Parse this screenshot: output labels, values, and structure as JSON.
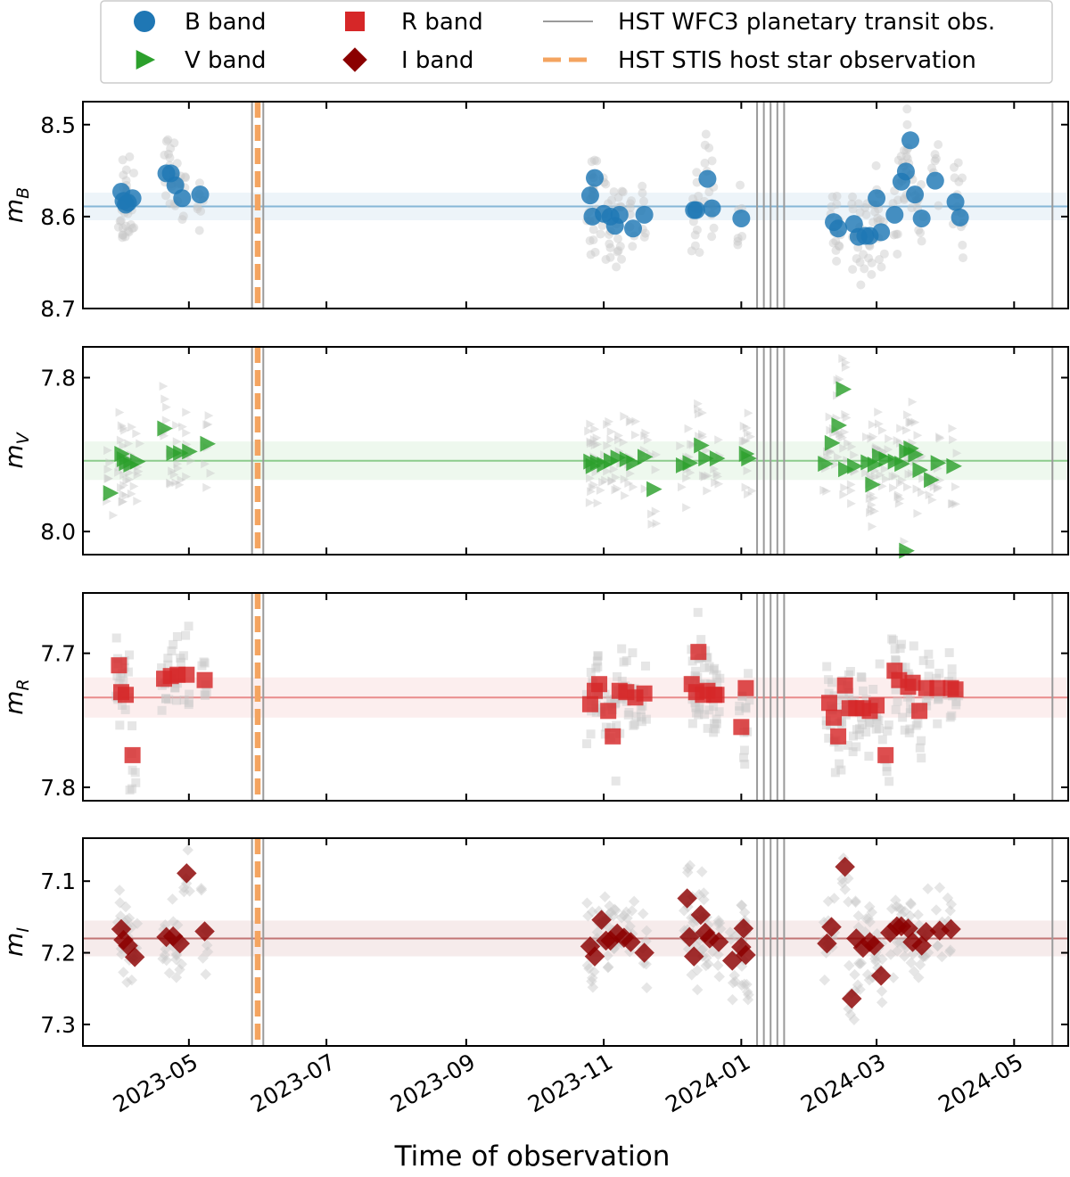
{
  "chart_data": {
    "type": "scatter",
    "xlabel": "Time of observation",
    "x_tick_labels": [
      "2023-05",
      "2023-07",
      "2023-09",
      "2023-11",
      "2024-01",
      "2024-03",
      "2024-05"
    ],
    "x_ticks": [
      "2023-05-01",
      "2023-07-01",
      "2023-09-01",
      "2023-11-01",
      "2024-01-01",
      "2024-03-01",
      "2024-05-01"
    ],
    "xlim": [
      "2023-03-15",
      "2024-05-25"
    ],
    "legend": {
      "placement": "top",
      "entries": [
        {
          "key": "B",
          "label": "B band",
          "marker": "circle",
          "color": "#1f77b4"
        },
        {
          "key": "V",
          "label": "V band",
          "marker": "triangle-right",
          "color": "#2ca02c"
        },
        {
          "key": "R",
          "label": "R band",
          "marker": "square",
          "color": "#d62728"
        },
        {
          "key": "I",
          "label": "I band",
          "marker": "diamond",
          "color": "#8b0000"
        },
        {
          "key": "wfc3",
          "label": "HST WFC3 planetary transit obs.",
          "marker": "line",
          "color": "#9a9a9a"
        },
        {
          "key": "stis",
          "label": "HST STIS host star observation",
          "marker": "dashed-line",
          "color": "#f4a460"
        }
      ]
    },
    "wfc3_transit_dates": [
      "2023-05-29",
      "2023-06-03",
      "2024-01-08",
      "2024-01-11",
      "2024-01-14",
      "2024-01-17",
      "2024-01-20",
      "2024-05-18"
    ],
    "stis_dates": [
      "2023-05-31",
      "2023-06-01"
    ],
    "panels": [
      {
        "band": "B",
        "ylabel": "m",
        "ylabel_sub": "B",
        "color": "#1f77b4",
        "marker": "circle",
        "ylim": [
          8.7,
          8.475
        ],
        "yticks": [
          "8.5",
          "8.6",
          "8.7"
        ],
        "ytick_values": [
          8.5,
          8.6,
          8.7
        ],
        "mean": 8.589,
        "band_halfwidth": 0.015,
        "points": [
          [
            "2023-04-01",
            8.573
          ],
          [
            "2023-04-02",
            8.583
          ],
          [
            "2023-04-03",
            8.587
          ],
          [
            "2023-04-04",
            8.585
          ],
          [
            "2023-04-06",
            8.58
          ],
          [
            "2023-04-21",
            8.553
          ],
          [
            "2023-04-23",
            8.553
          ],
          [
            "2023-04-25",
            8.566
          ],
          [
            "2023-04-28",
            8.58
          ],
          [
            "2023-05-06",
            8.576
          ],
          [
            "2023-10-26",
            8.577
          ],
          [
            "2023-10-27",
            8.6
          ],
          [
            "2023-10-28",
            8.558
          ],
          [
            "2023-11-01",
            8.597
          ],
          [
            "2023-11-04",
            8.6
          ],
          [
            "2023-11-06",
            8.61
          ],
          [
            "2023-11-08",
            8.598
          ],
          [
            "2023-11-14",
            8.613
          ],
          [
            "2023-11-19",
            8.598
          ],
          [
            "2023-12-11",
            8.593
          ],
          [
            "2023-12-12",
            8.593
          ],
          [
            "2023-12-17",
            8.559
          ],
          [
            "2023-12-19",
            8.591
          ],
          [
            "2024-01-01",
            8.602
          ],
          [
            "2024-02-11",
            8.606
          ],
          [
            "2024-02-13",
            8.613
          ],
          [
            "2024-02-20",
            8.608
          ],
          [
            "2024-02-22",
            8.622
          ],
          [
            "2024-02-25",
            8.621
          ],
          [
            "2024-02-27",
            8.621
          ],
          [
            "2024-03-01",
            8.58
          ],
          [
            "2024-03-03",
            8.617
          ],
          [
            "2024-03-09",
            8.598
          ],
          [
            "2024-03-12",
            8.562
          ],
          [
            "2024-03-14",
            8.551
          ],
          [
            "2024-03-16",
            8.517
          ],
          [
            "2024-03-18",
            8.576
          ],
          [
            "2024-03-21",
            8.602
          ],
          [
            "2024-03-27",
            8.561
          ],
          [
            "2024-04-05",
            8.584
          ],
          [
            "2024-04-07",
            8.601
          ]
        ]
      },
      {
        "band": "V",
        "ylabel": "m",
        "ylabel_sub": "V",
        "color": "#2ca02c",
        "marker": "triangle-right",
        "ylim": [
          8.03,
          7.76
        ],
        "yticks": [
          "7.8",
          "8.0"
        ],
        "ytick_values": [
          7.8,
          8.0
        ],
        "mean": 7.908,
        "band_halfwidth": 0.025,
        "points": [
          [
            "2023-03-27",
            7.95
          ],
          [
            "2023-04-01",
            7.899
          ],
          [
            "2023-04-02",
            7.906
          ],
          [
            "2023-04-03",
            7.911
          ],
          [
            "2023-04-05",
            7.913
          ],
          [
            "2023-04-08",
            7.909
          ],
          [
            "2023-04-20",
            7.866
          ],
          [
            "2023-04-24",
            7.898
          ],
          [
            "2023-04-27",
            7.898
          ],
          [
            "2023-05-01",
            7.896
          ],
          [
            "2023-05-09",
            7.886
          ],
          [
            "2023-10-26",
            7.909
          ],
          [
            "2023-10-27",
            7.915
          ],
          [
            "2023-10-29",
            7.91
          ],
          [
            "2023-11-01",
            7.913
          ],
          [
            "2023-11-04",
            7.908
          ],
          [
            "2023-11-07",
            7.904
          ],
          [
            "2023-11-11",
            7.906
          ],
          [
            "2023-11-14",
            7.911
          ],
          [
            "2023-11-19",
            7.903
          ],
          [
            "2023-11-23",
            7.945
          ],
          [
            "2023-12-06",
            7.914
          ],
          [
            "2023-12-09",
            7.911
          ],
          [
            "2023-12-14",
            7.888
          ],
          [
            "2023-12-16",
            7.905
          ],
          [
            "2023-12-21",
            7.905
          ],
          [
            "2024-01-03",
            7.899
          ],
          [
            "2024-01-04",
            7.905
          ],
          [
            "2024-02-07",
            7.912
          ],
          [
            "2024-02-10",
            7.885
          ],
          [
            "2024-02-13",
            7.862
          ],
          [
            "2024-02-15",
            7.815
          ],
          [
            "2024-02-16",
            7.919
          ],
          [
            "2024-02-20",
            7.915
          ],
          [
            "2024-02-26",
            7.91
          ],
          [
            "2024-02-28",
            7.939
          ],
          [
            "2024-02-29",
            7.913
          ],
          [
            "2024-03-02",
            7.902
          ],
          [
            "2024-03-05",
            7.906
          ],
          [
            "2024-03-09",
            7.909
          ],
          [
            "2024-03-12",
            7.912
          ],
          [
            "2024-03-14",
            7.896
          ],
          [
            "2024-03-16",
            7.892
          ],
          [
            "2024-03-18",
            7.9
          ],
          [
            "2024-03-20",
            7.92
          ],
          [
            "2024-03-25",
            7.933
          ],
          [
            "2024-03-28",
            7.911
          ],
          [
            "2024-04-04",
            7.915
          ],
          [
            "2024-03-14",
            8.025
          ]
        ]
      },
      {
        "band": "R",
        "ylabel": "m",
        "ylabel_sub": "R",
        "color": "#d62728",
        "marker": "square",
        "ylim": [
          7.81,
          7.655
        ],
        "yticks": [
          "7.7",
          "7.8"
        ],
        "ytick_values": [
          7.7,
          7.8
        ],
        "mean": 7.733,
        "band_halfwidth": 0.015,
        "points": [
          [
            "2023-03-31",
            7.709
          ],
          [
            "2023-04-01",
            7.729
          ],
          [
            "2023-04-03",
            7.731
          ],
          [
            "2023-04-06",
            7.776
          ],
          [
            "2023-04-20",
            7.719
          ],
          [
            "2023-04-23",
            7.717
          ],
          [
            "2023-04-26",
            7.716
          ],
          [
            "2023-04-30",
            7.716
          ],
          [
            "2023-05-08",
            7.72
          ],
          [
            "2023-10-26",
            7.738
          ],
          [
            "2023-10-28",
            7.728
          ],
          [
            "2023-10-30",
            7.723
          ],
          [
            "2023-11-03",
            7.743
          ],
          [
            "2023-11-05",
            7.762
          ],
          [
            "2023-11-08",
            7.728
          ],
          [
            "2023-11-11",
            7.729
          ],
          [
            "2023-11-15",
            7.733
          ],
          [
            "2023-11-19",
            7.73
          ],
          [
            "2023-12-10",
            7.723
          ],
          [
            "2023-12-12",
            7.729
          ],
          [
            "2023-12-13",
            7.699
          ],
          [
            "2023-12-15",
            7.731
          ],
          [
            "2023-12-17",
            7.728
          ],
          [
            "2023-12-20",
            7.731
          ],
          [
            "2023-12-21",
            7.731
          ],
          [
            "2024-01-01",
            7.755
          ],
          [
            "2024-01-03",
            7.726
          ],
          [
            "2024-02-09",
            7.737
          ],
          [
            "2024-02-11",
            7.748
          ],
          [
            "2024-02-13",
            7.762
          ],
          [
            "2024-02-16",
            7.724
          ],
          [
            "2024-02-18",
            7.741
          ],
          [
            "2024-02-21",
            7.741
          ],
          [
            "2024-02-24",
            7.741
          ],
          [
            "2024-02-27",
            7.743
          ],
          [
            "2024-03-01",
            7.739
          ],
          [
            "2024-03-05",
            7.776
          ],
          [
            "2024-03-09",
            7.713
          ],
          [
            "2024-03-11",
            7.72
          ],
          [
            "2024-03-15",
            7.725
          ],
          [
            "2024-03-17",
            7.722
          ],
          [
            "2024-03-20",
            7.743
          ],
          [
            "2024-03-23",
            7.726
          ],
          [
            "2024-03-28",
            7.726
          ],
          [
            "2024-04-03",
            7.726
          ],
          [
            "2024-04-05",
            7.727
          ]
        ]
      },
      {
        "band": "I",
        "ylabel": "m",
        "ylabel_sub": "I",
        "color": "#8b0000",
        "marker": "diamond",
        "ylim": [
          7.33,
          7.04
        ],
        "yticks": [
          "7.1",
          "7.2",
          "7.3"
        ],
        "ytick_values": [
          7.1,
          7.2,
          7.3
        ],
        "mean": 7.18,
        "band_halfwidth": 0.025,
        "points": [
          [
            "2023-04-01",
            7.167
          ],
          [
            "2023-04-02",
            7.182
          ],
          [
            "2023-04-04",
            7.19
          ],
          [
            "2023-04-07",
            7.206
          ],
          [
            "2023-04-21",
            7.178
          ],
          [
            "2023-04-24",
            7.177
          ],
          [
            "2023-04-27",
            7.187
          ],
          [
            "2023-04-30",
            7.089
          ],
          [
            "2023-05-08",
            7.17
          ],
          [
            "2023-10-26",
            7.191
          ],
          [
            "2023-10-28",
            7.205
          ],
          [
            "2023-10-31",
            7.154
          ],
          [
            "2023-11-02",
            7.183
          ],
          [
            "2023-11-04",
            7.183
          ],
          [
            "2023-11-07",
            7.173
          ],
          [
            "2023-11-10",
            7.179
          ],
          [
            "2023-11-13",
            7.185
          ],
          [
            "2023-11-19",
            7.2
          ],
          [
            "2023-12-08",
            7.124
          ],
          [
            "2023-12-09",
            7.178
          ],
          [
            "2023-12-11",
            7.205
          ],
          [
            "2023-12-14",
            7.147
          ],
          [
            "2023-12-16",
            7.172
          ],
          [
            "2023-12-18",
            7.18
          ],
          [
            "2023-12-22",
            7.185
          ],
          [
            "2023-12-28",
            7.211
          ],
          [
            "2024-01-01",
            7.192
          ],
          [
            "2024-01-02",
            7.166
          ],
          [
            "2024-01-03",
            7.203
          ],
          [
            "2024-02-08",
            7.187
          ],
          [
            "2024-02-10",
            7.164
          ],
          [
            "2024-02-16",
            7.08
          ],
          [
            "2024-02-19",
            7.264
          ],
          [
            "2024-02-21",
            7.18
          ],
          [
            "2024-02-24",
            7.193
          ],
          [
            "2024-02-27",
            7.185
          ],
          [
            "2024-02-29",
            7.19
          ],
          [
            "2024-03-03",
            7.232
          ],
          [
            "2024-03-07",
            7.172
          ],
          [
            "2024-03-10",
            7.163
          ],
          [
            "2024-03-12",
            7.163
          ],
          [
            "2024-03-15",
            7.166
          ],
          [
            "2024-03-17",
            7.185
          ],
          [
            "2024-03-21",
            7.19
          ],
          [
            "2024-03-23",
            7.171
          ],
          [
            "2024-03-29",
            7.169
          ],
          [
            "2024-04-03",
            7.167
          ]
        ]
      }
    ]
  }
}
